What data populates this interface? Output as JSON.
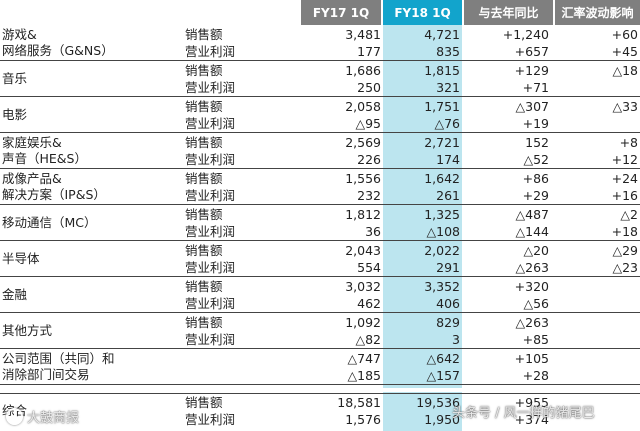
{
  "header": {
    "fy17": "FY17 1Q",
    "fy18": "FY18 1Q",
    "yoy": "与去年同比",
    "fx": "汇率波动影响"
  },
  "segments": [
    {
      "name": [
        "游戏&",
        "网络服务（G&NS）"
      ],
      "rows": [
        {
          "label": "销售额",
          "fy17": "3,481",
          "fy18": "4,721",
          "yoy": "+1,240",
          "fx": "+60"
        },
        {
          "label": "营业利润",
          "fy17": "177",
          "fy18": "835",
          "yoy": "+657",
          "fx": "+45"
        }
      ]
    },
    {
      "name": [
        "音乐"
      ],
      "rows": [
        {
          "label": "销售额",
          "fy17": "1,686",
          "fy18": "1,815",
          "yoy": "+129",
          "fx": "△18"
        },
        {
          "label": "营业利润",
          "fy17": "250",
          "fy18": "321",
          "yoy": "+71",
          "fx": ""
        }
      ]
    },
    {
      "name": [
        "电影"
      ],
      "rows": [
        {
          "label": "销售额",
          "fy17": "2,058",
          "fy18": "1,751",
          "yoy": "△307",
          "fx": "△33"
        },
        {
          "label": "营业利润",
          "fy17": "△95",
          "fy18": "△76",
          "yoy": "+19",
          "fx": ""
        }
      ]
    },
    {
      "name": [
        "家庭娱乐&",
        "声音（HE&S）"
      ],
      "rows": [
        {
          "label": "销售额",
          "fy17": "2,569",
          "fy18": "2,721",
          "yoy": "152",
          "fx": "+8"
        },
        {
          "label": "营业利润",
          "fy17": "226",
          "fy18": "174",
          "yoy": "△52",
          "fx": "+12"
        }
      ]
    },
    {
      "name": [
        "成像产品&",
        "解决方案（IP&S）"
      ],
      "rows": [
        {
          "label": "销售额",
          "fy17": "1,556",
          "fy18": "1,642",
          "yoy": "+86",
          "fx": "+24"
        },
        {
          "label": "营业利润",
          "fy17": "232",
          "fy18": "261",
          "yoy": "+29",
          "fx": "+16"
        }
      ]
    },
    {
      "name": [
        "移动通信（MC）"
      ],
      "rows": [
        {
          "label": "销售额",
          "fy17": "1,812",
          "fy18": "1,325",
          "yoy": "△487",
          "fx": "△2"
        },
        {
          "label": "营业利润",
          "fy17": "36",
          "fy18": "△108",
          "yoy": "△144",
          "fx": "+18"
        }
      ]
    },
    {
      "name": [
        "半导体"
      ],
      "rows": [
        {
          "label": "销售额",
          "fy17": "2,043",
          "fy18": "2,022",
          "yoy": "△20",
          "fx": "△29"
        },
        {
          "label": "营业利润",
          "fy17": "554",
          "fy18": "291",
          "yoy": "△263",
          "fx": "△23"
        }
      ]
    },
    {
      "name": [
        "金融"
      ],
      "rows": [
        {
          "label": "销售额",
          "fy17": "3,032",
          "fy18": "3,352",
          "yoy": "+320",
          "fx": ""
        },
        {
          "label": "营业利润",
          "fy17": "462",
          "fy18": "406",
          "yoy": "△56",
          "fx": ""
        }
      ]
    },
    {
      "name": [
        "其他方式"
      ],
      "rows": [
        {
          "label": "销售额",
          "fy17": "1,092",
          "fy18": "829",
          "yoy": "△263",
          "fx": ""
        },
        {
          "label": "营业利润",
          "fy17": "△82",
          "fy18": "3",
          "yoy": "+85",
          "fx": ""
        }
      ]
    },
    {
      "name": [
        "公司范围（共同）和",
        "消除部门间交易"
      ],
      "rows": [
        {
          "label": "",
          "fy17": "△747",
          "fy18": "△642",
          "yoy": "+105",
          "fx": ""
        },
        {
          "label": "",
          "fy17": "△185",
          "fy18": "△157",
          "yoy": "+28",
          "fx": ""
        }
      ]
    }
  ],
  "total": {
    "name": [
      "综合"
    ],
    "rows": [
      {
        "label": "销售额",
        "fy17": "18,581",
        "fy18": "19,536",
        "yoy": "+955",
        "fx": ""
      },
      {
        "label": "营业利润",
        "fy17": "1,576",
        "fy18": "1,950",
        "yoy": "+374",
        "fx": ""
      }
    ]
  },
  "watermarks": {
    "left": "大鼓商报",
    "right": "头条号 / 风一样的猪尾巴"
  }
}
